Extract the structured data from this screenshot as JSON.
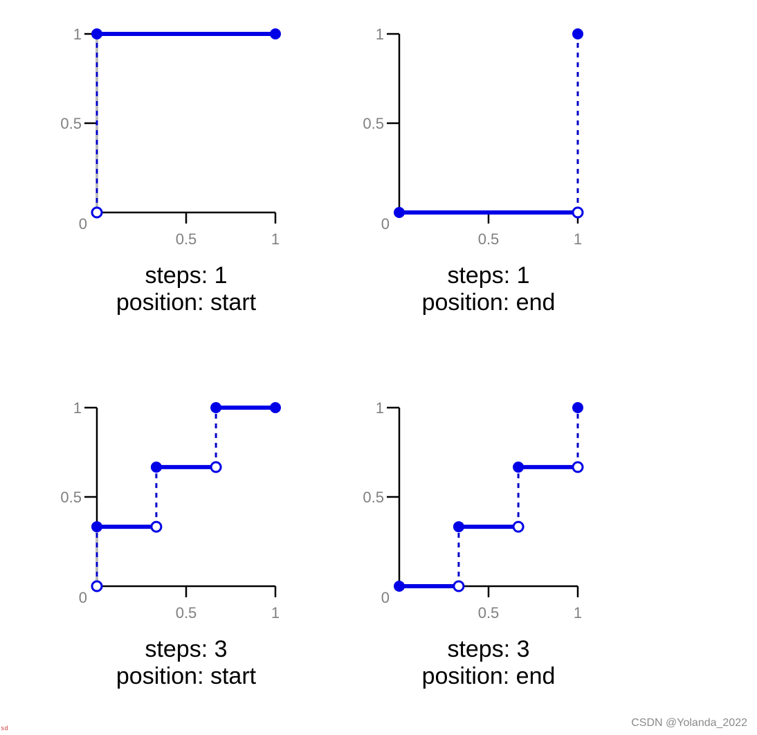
{
  "colors": {
    "series": "#0000e6",
    "axis": "#000000",
    "tick_text": "#808080",
    "drop_line": "#0000c8",
    "background": "#ffffff"
  },
  "watermark": "CSDN @Yolanda_2022",
  "corner_mark": "sd",
  "chart_data": [
    {
      "type": "line",
      "subtype": "step",
      "title_lines": [
        "steps: 1",
        "position: start"
      ],
      "xlim": [
        0,
        1
      ],
      "ylim": [
        0,
        1
      ],
      "x_tick_labels": [
        "0.5",
        "1"
      ],
      "y_tick_labels": [
        "0",
        "0.5",
        "1"
      ],
      "x_ticks": [
        0.5,
        1
      ],
      "y_ticks": [
        0,
        0.5,
        1
      ],
      "segments": [
        {
          "x": [
            0,
            1
          ],
          "y": [
            1,
            1
          ]
        }
      ],
      "jumps": [
        {
          "x": 0,
          "from": 0,
          "to": 1
        }
      ],
      "filled_points": [
        [
          0,
          1
        ],
        [
          1,
          1
        ]
      ],
      "open_points": [
        [
          0,
          0
        ]
      ]
    },
    {
      "type": "line",
      "subtype": "step",
      "title_lines": [
        "steps: 1",
        "position: end"
      ],
      "xlim": [
        0,
        1
      ],
      "ylim": [
        0,
        1
      ],
      "x_tick_labels": [
        "0.5",
        "1"
      ],
      "y_tick_labels": [
        "0",
        "0.5",
        "1"
      ],
      "x_ticks": [
        0.5,
        1
      ],
      "y_ticks": [
        0,
        0.5,
        1
      ],
      "segments": [
        {
          "x": [
            0,
            1
          ],
          "y": [
            0,
            0
          ]
        }
      ],
      "jumps": [
        {
          "x": 1,
          "from": 0,
          "to": 1
        }
      ],
      "filled_points": [
        [
          0,
          0
        ],
        [
          1,
          1
        ]
      ],
      "open_points": [
        [
          1,
          0
        ]
      ]
    },
    {
      "type": "line",
      "subtype": "step",
      "title_lines": [
        "steps: 3",
        "position: start"
      ],
      "xlim": [
        0,
        1
      ],
      "ylim": [
        0,
        1
      ],
      "x_tick_labels": [
        "0.5",
        "1"
      ],
      "y_tick_labels": [
        "0",
        "0.5",
        "1"
      ],
      "x_ticks": [
        0.5,
        1
      ],
      "y_ticks": [
        0,
        0.5,
        1
      ],
      "segments": [
        {
          "x": [
            0,
            0.333
          ],
          "y": [
            0.333,
            0.333
          ]
        },
        {
          "x": [
            0.333,
            0.667
          ],
          "y": [
            0.667,
            0.667
          ]
        },
        {
          "x": [
            0.667,
            1
          ],
          "y": [
            1,
            1
          ]
        }
      ],
      "jumps": [
        {
          "x": 0,
          "from": 0,
          "to": 0.333
        },
        {
          "x": 0.333,
          "from": 0.333,
          "to": 0.667
        },
        {
          "x": 0.667,
          "from": 0.667,
          "to": 1
        }
      ],
      "filled_points": [
        [
          0,
          0.333
        ],
        [
          0.333,
          0.667
        ],
        [
          0.667,
          1
        ],
        [
          1,
          1
        ]
      ],
      "open_points": [
        [
          0,
          0
        ],
        [
          0.333,
          0.333
        ],
        [
          0.667,
          0.667
        ]
      ]
    },
    {
      "type": "line",
      "subtype": "step",
      "title_lines": [
        "steps: 3",
        "position: end"
      ],
      "xlim": [
        0,
        1
      ],
      "ylim": [
        0,
        1
      ],
      "x_tick_labels": [
        "0.5",
        "1"
      ],
      "y_tick_labels": [
        "0",
        "0.5",
        "1"
      ],
      "x_ticks": [
        0.5,
        1
      ],
      "y_ticks": [
        0,
        0.5,
        1
      ],
      "segments": [
        {
          "x": [
            0,
            0.333
          ],
          "y": [
            0,
            0
          ]
        },
        {
          "x": [
            0.333,
            0.667
          ],
          "y": [
            0.333,
            0.333
          ]
        },
        {
          "x": [
            0.667,
            1
          ],
          "y": [
            0.667,
            0.667
          ]
        }
      ],
      "jumps": [
        {
          "x": 0.333,
          "from": 0,
          "to": 0.333
        },
        {
          "x": 0.667,
          "from": 0.333,
          "to": 0.667
        },
        {
          "x": 1,
          "from": 0.667,
          "to": 1
        }
      ],
      "filled_points": [
        [
          0,
          0
        ],
        [
          0.333,
          0.333
        ],
        [
          0.667,
          0.667
        ],
        [
          1,
          1
        ]
      ],
      "open_points": [
        [
          0.333,
          0
        ],
        [
          0.667,
          0.333
        ],
        [
          1,
          0.667
        ]
      ]
    }
  ]
}
